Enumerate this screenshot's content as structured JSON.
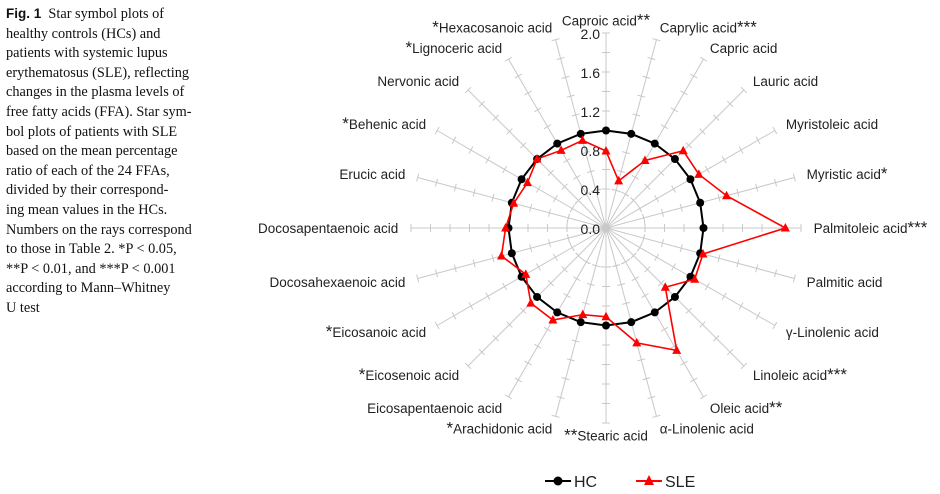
{
  "caption": {
    "figure_label": "Fig. 1",
    "lines": [
      "Star symbol plots of",
      "healthy controls (HCs) and",
      "patients with systemic lupus",
      "erythematosus (SLE), reflecting",
      "changes in the plasma levels of",
      "free fatty acids (FFA). Star sym-",
      "bol plots of patients with SLE",
      "based on the mean percentage",
      "ratio of each of the 24 FFAs,",
      "divided by their correspond-",
      "ing mean values in the HCs.",
      "Numbers on the rays correspond",
      "to those in Table 2. *P < 0.05,",
      "**P < 0.01, and ***P < 0.001",
      "according to Mann–Whitney",
      "U test"
    ]
  },
  "chart_data": {
    "type": "radar",
    "radial_ticks": [
      "0.0",
      "0.4",
      "0.8",
      "1.2",
      "1.6",
      "2.0"
    ],
    "rlim": [
      0,
      2.0
    ],
    "categories": [
      "Caproic acid",
      "Caprylic acid",
      "Capric acid",
      "Lauric acid",
      "Myristoleic acid",
      "Myristic acid",
      "Palmitoleic acid",
      "Palmitic acid",
      "γ-Linolenic acid",
      "Linoleic acid",
      "Oleic acid",
      "α-Linolenic acid",
      "Stearic acid",
      "Arachidonic acid",
      "Eicosapentaenoic acid",
      "Eicosenoic acid",
      "Eicosanoic acid",
      "Docosahexaenoic acid",
      "Docosapentaenoic acid",
      "Erucic acid",
      "Behenic acid",
      "Nervonic acid",
      "Lignoceric acid",
      "Hexacosanoic acid"
    ],
    "significance": [
      "**",
      "***",
      "",
      "",
      "",
      "*",
      "***",
      "",
      "",
      "***",
      "**",
      "",
      "**",
      "*",
      "",
      "*",
      "*",
      "",
      "",
      "",
      "*",
      "",
      "*",
      "*"
    ],
    "series": [
      {
        "name": "HC",
        "color": "#000000",
        "marker": "circle",
        "values": [
          1,
          1,
          1,
          1,
          1,
          1,
          1,
          1,
          1,
          1,
          1,
          1,
          1,
          1,
          1,
          1,
          1,
          1,
          1,
          1,
          1,
          1,
          1,
          1
        ]
      },
      {
        "name": "SLE",
        "color": "#ff0000",
        "marker": "triangle",
        "values": [
          0.79,
          0.5,
          0.8,
          1.12,
          1.1,
          1.28,
          1.84,
          1.03,
          1.05,
          0.86,
          1.45,
          1.22,
          0.91,
          0.92,
          1.09,
          1.09,
          0.95,
          1.11,
          1.03,
          0.98,
          0.93,
          1.0,
          0.92,
          0.93
        ]
      }
    ],
    "legend": "bottom"
  }
}
